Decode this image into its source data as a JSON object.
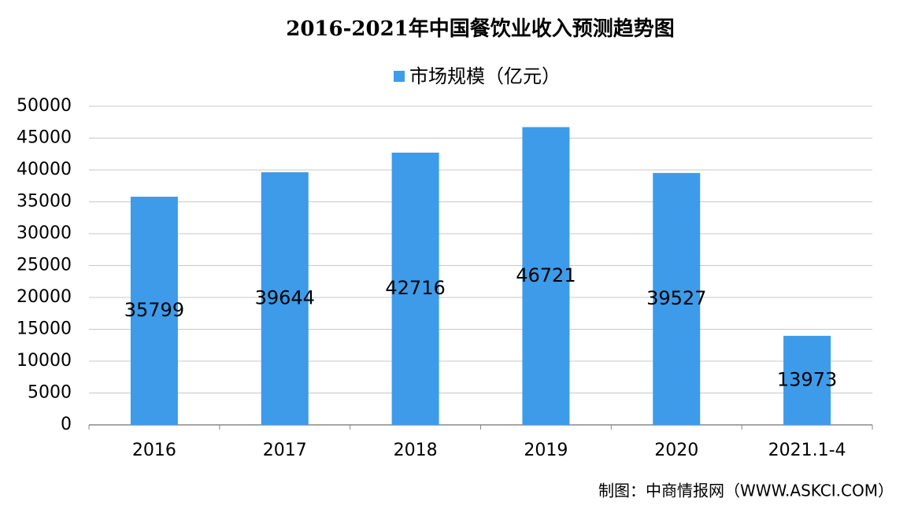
{
  "chart_data": {
    "type": "bar",
    "title": "2016-2021年中国餐饮业收入预测趋势图",
    "categories": [
      "2016",
      "2017",
      "2018",
      "2019",
      "2020",
      "2021.1-4"
    ],
    "series": [
      {
        "name": "市场规模（亿元）",
        "color": "#3d9be9",
        "values": [
          35799,
          39644,
          42716,
          46721,
          39527,
          13973
        ]
      }
    ],
    "ylim": [
      0,
      50000
    ],
    "yticks": [
      0,
      5000,
      10000,
      15000,
      20000,
      25000,
      30000,
      35000,
      40000,
      45000,
      50000
    ],
    "grid": true,
    "legend": "top",
    "source": "制图：中商情报网（WWW.ASKCI.COM）"
  }
}
